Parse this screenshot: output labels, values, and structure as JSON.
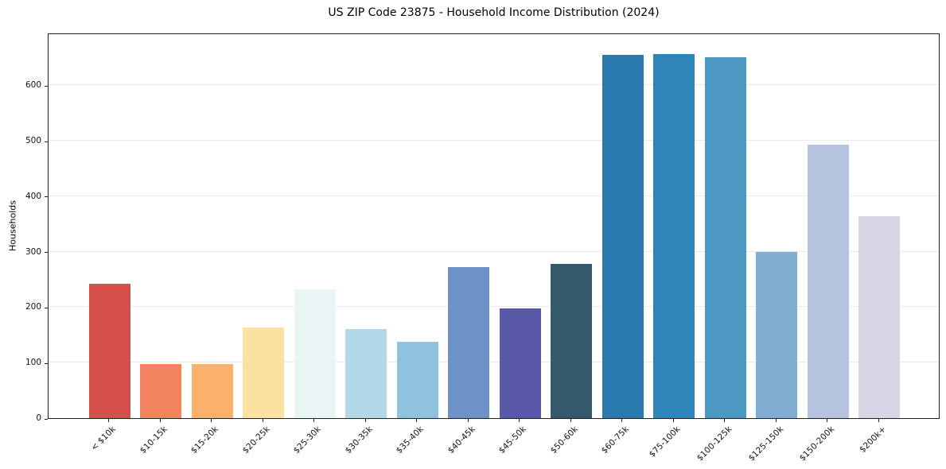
{
  "chart_data": {
    "type": "bar",
    "title": "US ZIP Code 23875 - Household Income Distribution (2024)",
    "xlabel": "",
    "ylabel": "Households",
    "categories": [
      "< $10k",
      "$10-15k",
      "$15-20k",
      "$20-25k",
      "$25-30k",
      "$30-35k",
      "$35-40k",
      "$40-45k",
      "$45-50k",
      "$50-60k",
      "$60-75k",
      "$75-100k",
      "$100-125k",
      "$125-150k",
      "$150-200k",
      "$200k+"
    ],
    "values": [
      242,
      97,
      97,
      163,
      232,
      161,
      138,
      273,
      198,
      278,
      655,
      657,
      650,
      300,
      493,
      364
    ],
    "bar_colors": [
      "#d5504a",
      "#f3855e",
      "#f9b16b",
      "#fce2a0",
      "#e9f5f4",
      "#b3d9e8",
      "#8ec2dd",
      "#6d93c6",
      "#5a58a8",
      "#33596a",
      "#2a7aad",
      "#2e85b8",
      "#4d97c3",
      "#81add3",
      "#b6c3df",
      "#d6d6e4"
    ],
    "ylim": [
      0,
      695
    ],
    "yticks": [
      0,
      100,
      200,
      300,
      400,
      500,
      600
    ],
    "grid": true,
    "grid_color": "#e7e9ea",
    "legend": false,
    "bar_relative_width": 0.8
  }
}
